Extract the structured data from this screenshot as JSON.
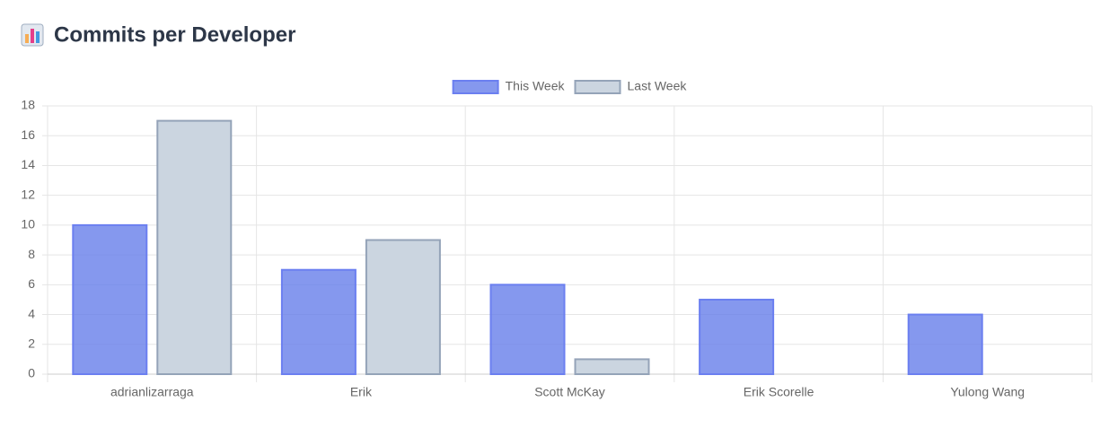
{
  "chart_data": {
    "type": "bar",
    "title": "Commits per Developer",
    "categories": [
      "adrianlizarraga",
      "Erik",
      "Scott McKay",
      "Erik Scorelle",
      "Yulong Wang"
    ],
    "series": [
      {
        "name": "This Week",
        "color": "#667eea",
        "values": [
          10,
          7,
          6,
          5,
          4
        ]
      },
      {
        "name": "Last Week",
        "color": "#cbd5e0",
        "values": [
          17,
          9,
          1,
          0,
          0
        ]
      }
    ],
    "ylim": [
      0,
      18
    ],
    "yticks": [
      0,
      2,
      4,
      6,
      8,
      10,
      12,
      14,
      16,
      18
    ],
    "grid": true,
    "legend": "top"
  }
}
